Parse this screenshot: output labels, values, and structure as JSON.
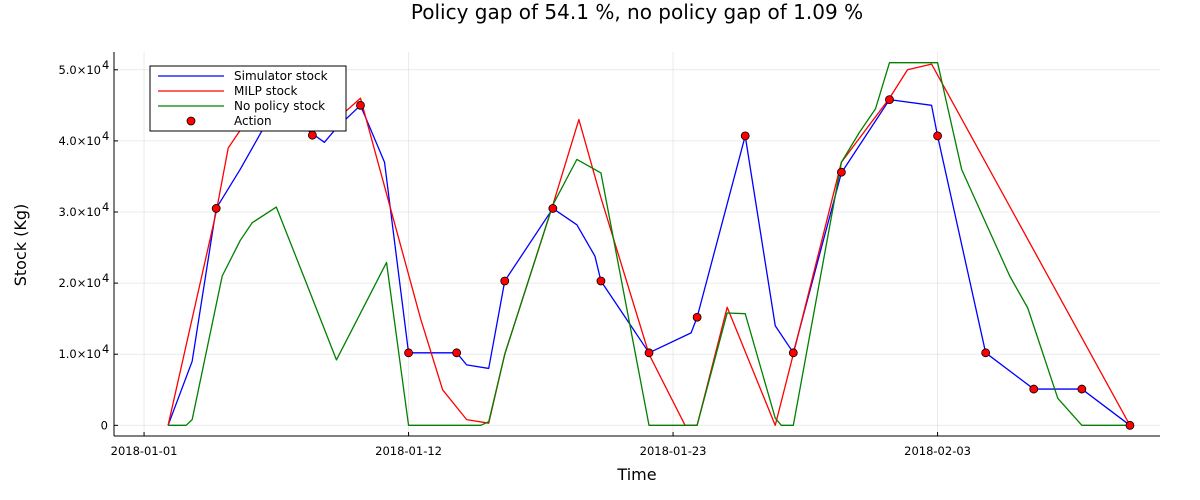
{
  "chart_data": {
    "type": "line",
    "title": "Policy gap of 54.1 %, no policy gap of 1.09 %",
    "xlabel": "Time",
    "ylabel": "Stock (Kg)",
    "x_tick_labels": [
      "2018-01-01",
      "2018-01-12",
      "2018-01-23",
      "2018-02-03"
    ],
    "y_tick_labels": [
      {
        "value": 0,
        "mantissa": "0",
        "exp": ""
      },
      {
        "value": 10000,
        "mantissa": "1.0×10",
        "exp": "4"
      },
      {
        "value": 20000,
        "mantissa": "2.0×10",
        "exp": "4"
      },
      {
        "value": 30000,
        "mantissa": "3.0×10",
        "exp": "4"
      },
      {
        "value": 40000,
        "mantissa": "4.0×10",
        "exp": "4"
      },
      {
        "value": 50000,
        "mantissa": "5.0×10",
        "exp": "4"
      }
    ],
    "x_axis_date_range": [
      "2017-12-30T18:00",
      "2018-02-12T06:00"
    ],
    "ylim": [
      -1500,
      52500
    ],
    "grid": true,
    "legend_position": "top-left",
    "series": [
      {
        "name": "Simulator stock",
        "kind": "line",
        "color": "#0000ff",
        "points": [
          {
            "x": "2018-01-02T00:00",
            "y": 0
          },
          {
            "x": "2018-01-03T00:00",
            "y": 9000
          },
          {
            "x": "2018-01-04T00:00",
            "y": 30500
          },
          {
            "x": "2018-01-05T00:00",
            "y": 36000
          },
          {
            "x": "2018-01-06T00:00",
            "y": 42000
          },
          {
            "x": "2018-01-07T00:00",
            "y": 43500
          },
          {
            "x": "2018-01-08T00:00",
            "y": 41000
          },
          {
            "x": "2018-01-08T12:00",
            "y": 39800
          },
          {
            "x": "2018-01-09T00:00",
            "y": 41800
          },
          {
            "x": "2018-01-10T00:00",
            "y": 45000
          },
          {
            "x": "2018-01-11T00:00",
            "y": 37000
          },
          {
            "x": "2018-01-12T00:00",
            "y": 10200
          },
          {
            "x": "2018-01-13T00:00",
            "y": 10200
          },
          {
            "x": "2018-01-14T00:00",
            "y": 10200
          },
          {
            "x": "2018-01-14T10:00",
            "y": 8500
          },
          {
            "x": "2018-01-15T08:00",
            "y": 8000
          },
          {
            "x": "2018-01-16T00:00",
            "y": 20300
          },
          {
            "x": "2018-01-18T00:00",
            "y": 30500
          },
          {
            "x": "2018-01-19T00:00",
            "y": 28200
          },
          {
            "x": "2018-01-19T18:00",
            "y": 23800
          },
          {
            "x": "2018-01-20T00:00",
            "y": 20300
          },
          {
            "x": "2018-01-22T00:00",
            "y": 10200
          },
          {
            "x": "2018-01-23T18:00",
            "y": 13000
          },
          {
            "x": "2018-01-24T00:00",
            "y": 15200
          },
          {
            "x": "2018-01-26T00:00",
            "y": 40700
          },
          {
            "x": "2018-01-27T06:00",
            "y": 14000
          },
          {
            "x": "2018-01-28T00:00",
            "y": 10200
          },
          {
            "x": "2018-01-30T00:00",
            "y": 35500
          },
          {
            "x": "2018-02-01T00:00",
            "y": 45800
          },
          {
            "x": "2018-02-02T18:00",
            "y": 45000
          },
          {
            "x": "2018-02-03T00:00",
            "y": 40700
          },
          {
            "x": "2018-02-05T00:00",
            "y": 10200
          },
          {
            "x": "2018-02-07T00:00",
            "y": 5100
          },
          {
            "x": "2018-02-09T00:00",
            "y": 5100
          },
          {
            "x": "2018-02-11T00:00",
            "y": 0
          }
        ]
      },
      {
        "name": "MILP stock",
        "kind": "line",
        "color": "#ff0000",
        "points": [
          {
            "x": "2018-01-02T00:00",
            "y": 0
          },
          {
            "x": "2018-01-04T00:00",
            "y": 30000
          },
          {
            "x": "2018-01-04T12:00",
            "y": 39000
          },
          {
            "x": "2018-01-05T12:00",
            "y": 44000
          },
          {
            "x": "2018-01-07T00:00",
            "y": 44000
          },
          {
            "x": "2018-01-09T00:00",
            "y": 43000
          },
          {
            "x": "2018-01-10T00:00",
            "y": 46000
          },
          {
            "x": "2018-01-12T12:00",
            "y": 15000
          },
          {
            "x": "2018-01-13T10:00",
            "y": 5000
          },
          {
            "x": "2018-01-14T10:00",
            "y": 800
          },
          {
            "x": "2018-01-15T08:00",
            "y": 300
          },
          {
            "x": "2018-01-16T00:00",
            "y": 10000
          },
          {
            "x": "2018-01-18T00:00",
            "y": 31000
          },
          {
            "x": "2018-01-19T02:00",
            "y": 43000
          },
          {
            "x": "2018-01-20T00:00",
            "y": 32000
          },
          {
            "x": "2018-01-22T00:00",
            "y": 10000
          },
          {
            "x": "2018-01-23T12:00",
            "y": 0
          },
          {
            "x": "2018-01-24T00:00",
            "y": 0
          },
          {
            "x": "2018-01-25T06:00",
            "y": 16600
          },
          {
            "x": "2018-01-27T06:00",
            "y": 0
          },
          {
            "x": "2018-01-28T00:00",
            "y": 10000
          },
          {
            "x": "2018-01-30T00:00",
            "y": 37000
          },
          {
            "x": "2018-02-01T00:00",
            "y": 46000
          },
          {
            "x": "2018-02-01T18:00",
            "y": 50000
          },
          {
            "x": "2018-02-02T18:00",
            "y": 50800
          },
          {
            "x": "2018-02-11T00:00",
            "y": 0
          }
        ]
      },
      {
        "name": "No policy stock",
        "kind": "line",
        "color": "#008000",
        "points": [
          {
            "x": "2018-01-02T00:00",
            "y": 0
          },
          {
            "x": "2018-01-02T18:00",
            "y": 0
          },
          {
            "x": "2018-01-03T00:00",
            "y": 800
          },
          {
            "x": "2018-01-04T06:00",
            "y": 21000
          },
          {
            "x": "2018-01-05T00:00",
            "y": 26000
          },
          {
            "x": "2018-01-05T12:00",
            "y": 28500
          },
          {
            "x": "2018-01-06T12:00",
            "y": 30700
          },
          {
            "x": "2018-01-07T18:00",
            "y": 20000
          },
          {
            "x": "2018-01-09T00:00",
            "y": 9200
          },
          {
            "x": "2018-01-11T02:00",
            "y": 22900
          },
          {
            "x": "2018-01-12T00:00",
            "y": 0
          },
          {
            "x": "2018-01-15T00:00",
            "y": 0
          },
          {
            "x": "2018-01-15T08:00",
            "y": 500
          },
          {
            "x": "2018-01-16T00:00",
            "y": 10000
          },
          {
            "x": "2018-01-18T00:00",
            "y": 31000
          },
          {
            "x": "2018-01-19T00:00",
            "y": 37400
          },
          {
            "x": "2018-01-20T00:00",
            "y": 35500
          },
          {
            "x": "2018-01-22T00:00",
            "y": 0
          },
          {
            "x": "2018-01-24T00:00",
            "y": 0
          },
          {
            "x": "2018-01-25T06:00",
            "y": 15800
          },
          {
            "x": "2018-01-26T00:00",
            "y": 15700
          },
          {
            "x": "2018-01-27T06:00",
            "y": 1000
          },
          {
            "x": "2018-01-27T12:00",
            "y": 0
          },
          {
            "x": "2018-01-28T00:00",
            "y": 0
          },
          {
            "x": "2018-01-30T00:00",
            "y": 37000
          },
          {
            "x": "2018-01-30T18:00",
            "y": 41200
          },
          {
            "x": "2018-01-31T10:00",
            "y": 44500
          },
          {
            "x": "2018-02-01T00:00",
            "y": 51000
          },
          {
            "x": "2018-02-03T00:00",
            "y": 51000
          },
          {
            "x": "2018-02-04T00:00",
            "y": 36000
          },
          {
            "x": "2018-02-06T00:00",
            "y": 21000
          },
          {
            "x": "2018-02-06T18:00",
            "y": 16500
          },
          {
            "x": "2018-02-08T00:00",
            "y": 3800
          },
          {
            "x": "2018-02-09T00:00",
            "y": 0
          },
          {
            "x": "2018-02-11T00:00",
            "y": 0
          }
        ]
      },
      {
        "name": "Action",
        "kind": "scatter",
        "color": "#ff0000",
        "points": [
          {
            "x": "2018-01-04T00:00",
            "y": 30500
          },
          {
            "x": "2018-01-06T00:00",
            "y": 42000
          },
          {
            "x": "2018-01-08T00:00",
            "y": 40800
          },
          {
            "x": "2018-01-10T00:00",
            "y": 45000
          },
          {
            "x": "2018-01-12T00:00",
            "y": 10200
          },
          {
            "x": "2018-01-14T00:00",
            "y": 10200
          },
          {
            "x": "2018-01-16T00:00",
            "y": 20300
          },
          {
            "x": "2018-01-18T00:00",
            "y": 30500
          },
          {
            "x": "2018-01-20T00:00",
            "y": 20300
          },
          {
            "x": "2018-01-22T00:00",
            "y": 10200
          },
          {
            "x": "2018-01-24T00:00",
            "y": 15200
          },
          {
            "x": "2018-01-26T00:00",
            "y": 40700
          },
          {
            "x": "2018-01-28T00:00",
            "y": 10200
          },
          {
            "x": "2018-01-30T00:00",
            "y": 35600
          },
          {
            "x": "2018-02-01T00:00",
            "y": 45800
          },
          {
            "x": "2018-02-03T00:00",
            "y": 40700
          },
          {
            "x": "2018-02-05T00:00",
            "y": 10200
          },
          {
            "x": "2018-02-07T00:00",
            "y": 5100
          },
          {
            "x": "2018-02-09T00:00",
            "y": 5100
          },
          {
            "x": "2018-02-11T00:00",
            "y": 0
          }
        ]
      }
    ]
  }
}
